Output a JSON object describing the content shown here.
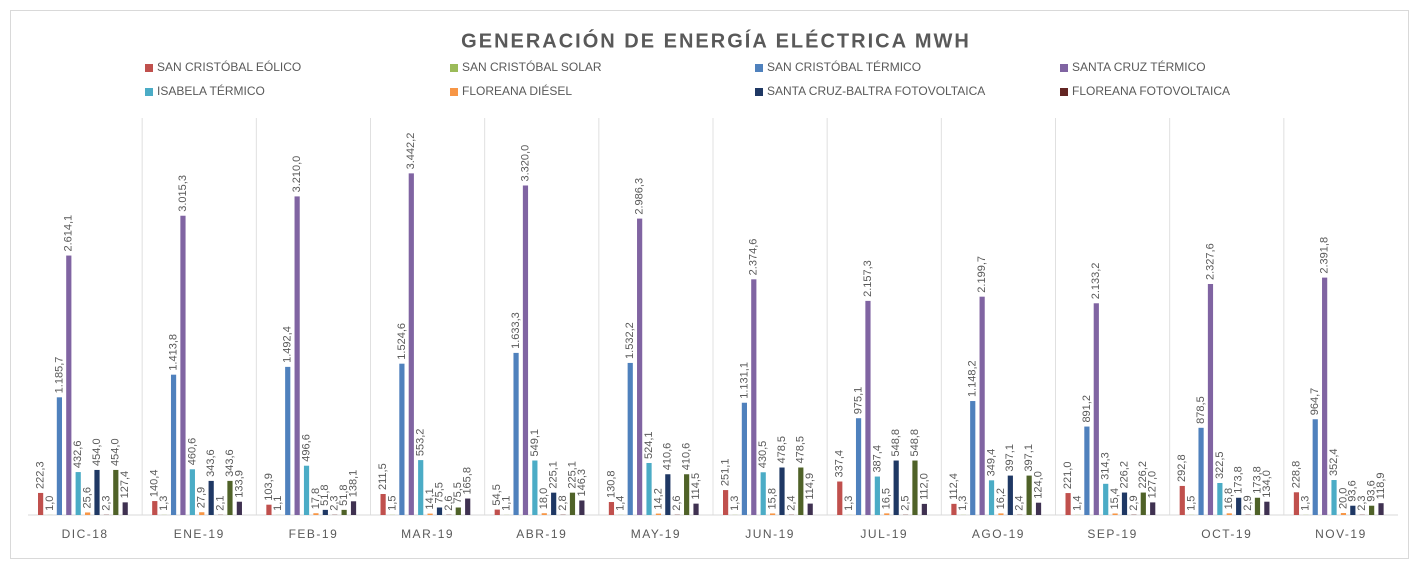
{
  "chart_data": {
    "type": "bar",
    "title": "GENERACIÓN DE ENERGÍA ELÉCTRICA MWH",
    "categories": [
      "DIC-18",
      "ENE-19",
      "FEB-19",
      "MAR-19",
      "ABR-19",
      "MAY-19",
      "JUN-19",
      "JUL-19",
      "AGO-19",
      "SEP-19",
      "OCT-19",
      "NOV-19"
    ],
    "ylim": [
      0,
      4000
    ],
    "series": [
      {
        "name": "SAN CRISTÓBAL EÓLICO",
        "color": "#c0504d",
        "values": [
          222.3,
          140.4,
          103.9,
          211.5,
          54.5,
          130.8,
          251.1,
          337.4,
          112.4,
          221.0,
          292.8,
          228.8
        ],
        "value_labels": [
          "222,3",
          "140,4",
          "103,9",
          "211,5",
          "54,5",
          "130,8",
          "251,1",
          "337,4",
          "112,4",
          "221,0",
          "292,8",
          "228,8"
        ]
      },
      {
        "name": "SAN CRISTÓBAL SOLAR",
        "color": "#9bbb59",
        "values": [
          1.0,
          1.3,
          1.1,
          1.5,
          1.1,
          1.4,
          1.3,
          1.3,
          1.3,
          1.4,
          1.5,
          1.3
        ],
        "value_labels": [
          "1,0",
          "1,3",
          "1,1",
          "1,5",
          "1,1",
          "1,4",
          "1,3",
          "1,3",
          "1,3",
          "1,4",
          "1,5",
          "1,3"
        ]
      },
      {
        "name": "SAN CRISTÓBAL TÉRMICO",
        "color": "#4f81bd",
        "values": [
          1185.7,
          1413.8,
          1492.4,
          1524.6,
          1633.3,
          1532.2,
          1131.1,
          975.1,
          1148.2,
          891.2,
          878.5,
          964.7
        ],
        "value_labels": [
          "1.185,7",
          "1.413,8",
          "1.492,4",
          "1.524,6",
          "1.633,3",
          "1.532,2",
          "1.131,1",
          "975,1",
          "1.148,2",
          "891,2",
          "878,5",
          "964,7"
        ]
      },
      {
        "name": "SANTA CRUZ TÉRMICO",
        "color": "#8064a2",
        "values": [
          2614.1,
          3015.3,
          3210.0,
          3442.2,
          3320.0,
          2986.3,
          2374.6,
          2157.3,
          2199.7,
          2133.2,
          2327.6,
          2391.8
        ],
        "value_labels": [
          "2.614,1",
          "3.015,3",
          "3.210,0",
          "3.442,2",
          "3.320,0",
          "2.986,3",
          "2.374,6",
          "2.157,3",
          "2.199,7",
          "2.133,2",
          "2.327,6",
          "2.391,8"
        ]
      },
      {
        "name": "ISABELA TÉRMICO",
        "color": "#4bacc6",
        "values": [
          432.6,
          460.6,
          496.6,
          553.2,
          549.1,
          524.1,
          430.5,
          387.4,
          349.4,
          314.3,
          322.5,
          352.4
        ],
        "value_labels": [
          "432,6",
          "460,6",
          "496,6",
          "553,2",
          "549,1",
          "524,1",
          "430,5",
          "387,4",
          "349,4",
          "314,3",
          "322,5",
          "352,4"
        ]
      },
      {
        "name": "FLOREANA DIÉSEL",
        "color": "#f79646",
        "values": [
          25.6,
          27.9,
          17.8,
          14.1,
          18.0,
          14.2,
          15.8,
          16.5,
          16.2,
          15.4,
          16.8,
          20.0
        ],
        "value_labels": [
          "25,6",
          "27,9",
          "17,8",
          "14,1",
          "18,0",
          "14,2",
          "15,8",
          "16,5",
          "16,2",
          "15,4",
          "16,8",
          "20,0"
        ]
      },
      {
        "name": "SANTA CRUZ-BALTRA FOTOVOLTAICA",
        "color": "#1f3864",
        "values": [
          454.0,
          343.6,
          51.8,
          75.5,
          225.1,
          410.6,
          478.5,
          548.8,
          397.1,
          226.2,
          173.8,
          93.6
        ],
        "value_labels": [
          "454,0",
          "343,6",
          "51,8",
          "75,5",
          "225,1",
          "410,6",
          "478,5",
          "548,8",
          "397,1",
          "226,2",
          "173,8",
          "93,6"
        ]
      },
      {
        "name": "FLOREANA FOTOVOLTAICA",
        "color": "#632523",
        "values": [
          2.3,
          2.1,
          2.3,
          2.6,
          2.8,
          2.6,
          2.4,
          2.5,
          2.4,
          2.9,
          2.9,
          2.3
        ],
        "value_labels": [
          "2,3",
          "2,1",
          "2,3",
          "2,6",
          "2,8",
          "2,6",
          "2,4",
          "2,5",
          "2,4",
          "2,9",
          "2,9",
          "2,3"
        ]
      },
      {
        "color": "#4f6228",
        "values": [
          454.0,
          343.6,
          51.8,
          75.5,
          225.1,
          410.6,
          478.5,
          548.8,
          397.1,
          226.2,
          173.8,
          93.6
        ],
        "value_labels": [
          "454,0",
          "343,6",
          "51,8",
          "75,5",
          "225,1",
          "410,6",
          "478,5",
          "548,8",
          "397,1",
          "226,2",
          "173,8",
          "93,6"
        ]
      },
      {
        "color": "#3f3151",
        "values": [
          127.4,
          133.9,
          138.1,
          165.8,
          146.3,
          114.5,
          114.9,
          112.0,
          124.0,
          127.0,
          134.0,
          118.9
        ],
        "value_labels": [
          "127,4",
          "133,9",
          "138,1",
          "165,8",
          "146,3",
          "114,5",
          "114,9",
          "112,0",
          "124,0",
          "127,0",
          "134,0",
          "118,9"
        ]
      }
    ]
  }
}
